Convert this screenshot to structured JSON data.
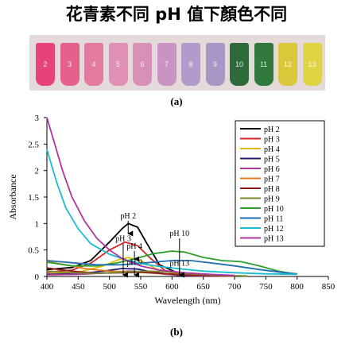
{
  "figure_title": "花青素不同 pH 值下顏色不同",
  "photo": {
    "caption": "(a)",
    "tubes": [
      {
        "label": "2",
        "color": "#e8427a"
      },
      {
        "label": "3",
        "color": "#e6608e"
      },
      {
        "label": "4",
        "color": "#e47aa0"
      },
      {
        "label": "5",
        "color": "#df90b4"
      },
      {
        "label": "6",
        "color": "#d88fb8"
      },
      {
        "label": "7",
        "color": "#c994c4"
      },
      {
        "label": "8",
        "color": "#b39acb"
      },
      {
        "label": "9",
        "color": "#a697c4"
      },
      {
        "label": "10",
        "color": "#2f6b3a"
      },
      {
        "label": "11",
        "color": "#2f7a3c"
      },
      {
        "label": "12",
        "color": "#d9c93a"
      },
      {
        "label": "13",
        "color": "#e0d444"
      }
    ]
  },
  "chart_caption": "(b)",
  "chart_data": {
    "type": "line",
    "xlabel": "Wavelength (nm)",
    "ylabel": "Absorbance",
    "xlim": [
      400,
      850
    ],
    "ylim": [
      0,
      3
    ],
    "xticks": [
      400,
      450,
      500,
      550,
      600,
      650,
      700,
      750,
      800,
      850
    ],
    "yticks": [
      0,
      0.5,
      1,
      1.5,
      2,
      2.5,
      3
    ],
    "ytick_labels": [
      "0",
      "0.5",
      "1",
      "1.5",
      "2",
      "2.5",
      "3"
    ],
    "grid": false,
    "legend_position": "top-right",
    "series": [
      {
        "name": "pH 2",
        "color": "#000000",
        "points": [
          [
            400,
            0.13
          ],
          [
            440,
            0.17
          ],
          [
            470,
            0.3
          ],
          [
            500,
            0.65
          ],
          [
            520,
            0.9
          ],
          [
            530,
            1.0
          ],
          [
            545,
            0.93
          ],
          [
            560,
            0.62
          ],
          [
            580,
            0.22
          ],
          [
            610,
            0.06
          ],
          [
            650,
            0.02
          ],
          [
            700,
            0.01
          ]
        ]
      },
      {
        "name": "pH 3",
        "color": "#d62728",
        "points": [
          [
            400,
            0.08
          ],
          [
            440,
            0.12
          ],
          [
            470,
            0.25
          ],
          [
            500,
            0.5
          ],
          [
            525,
            0.65
          ],
          [
            545,
            0.58
          ],
          [
            565,
            0.35
          ],
          [
            590,
            0.1
          ],
          [
            620,
            0.03
          ],
          [
            660,
            0.01
          ],
          [
            700,
            0.01
          ]
        ]
      },
      {
        "name": "pH 4",
        "color": "#e5b800",
        "points": [
          [
            400,
            0.05
          ],
          [
            450,
            0.08
          ],
          [
            490,
            0.2
          ],
          [
            515,
            0.32
          ],
          [
            530,
            0.36
          ],
          [
            550,
            0.3
          ],
          [
            575,
            0.14
          ],
          [
            610,
            0.04
          ],
          [
            660,
            0.01
          ],
          [
            700,
            0.01
          ]
        ]
      },
      {
        "name": "pH 5",
        "color": "#1f1f6e",
        "points": [
          [
            400,
            0.04
          ],
          [
            450,
            0.05
          ],
          [
            490,
            0.1
          ],
          [
            520,
            0.15
          ],
          [
            545,
            0.14
          ],
          [
            570,
            0.08
          ],
          [
            610,
            0.02
          ],
          [
            660,
            0.01
          ],
          [
            700,
            0.01
          ]
        ]
      },
      {
        "name": "pH 6",
        "color": "#b0339e",
        "points": [
          [
            400,
            0.03
          ],
          [
            450,
            0.04
          ],
          [
            500,
            0.07
          ],
          [
            530,
            0.1
          ],
          [
            555,
            0.09
          ],
          [
            590,
            0.04
          ],
          [
            640,
            0.01
          ],
          [
            700,
            0.01
          ]
        ]
      },
      {
        "name": "pH 7",
        "color": "#e07b1f",
        "points": [
          [
            400,
            0.28
          ],
          [
            430,
            0.22
          ],
          [
            460,
            0.15
          ],
          [
            500,
            0.1
          ],
          [
            530,
            0.09
          ],
          [
            560,
            0.07
          ],
          [
            600,
            0.04
          ],
          [
            650,
            0.02
          ],
          [
            700,
            0.01
          ]
        ]
      },
      {
        "name": "pH 8",
        "color": "#8b1a1a",
        "points": [
          [
            400,
            0.16
          ],
          [
            440,
            0.1
          ],
          [
            480,
            0.06
          ],
          [
            520,
            0.07
          ],
          [
            550,
            0.08
          ],
          [
            580,
            0.06
          ],
          [
            620,
            0.03
          ],
          [
            670,
            0.01
          ],
          [
            700,
            0.01
          ]
        ]
      },
      {
        "name": "pH 9",
        "color": "#7a8a2f",
        "points": [
          [
            400,
            0.1
          ],
          [
            440,
            0.07
          ],
          [
            480,
            0.06
          ],
          [
            520,
            0.08
          ],
          [
            560,
            0.1
          ],
          [
            590,
            0.09
          ],
          [
            630,
            0.05
          ],
          [
            680,
            0.02
          ],
          [
            720,
            0.01
          ]
        ]
      },
      {
        "name": "pH 10",
        "color": "#2ca02c",
        "points": [
          [
            400,
            0.27
          ],
          [
            440,
            0.2
          ],
          [
            480,
            0.2
          ],
          [
            510,
            0.25
          ],
          [
            540,
            0.33
          ],
          [
            570,
            0.43
          ],
          [
            600,
            0.48
          ],
          [
            620,
            0.46
          ],
          [
            650,
            0.36
          ],
          [
            680,
            0.3
          ],
          [
            710,
            0.28
          ],
          [
            740,
            0.2
          ],
          [
            770,
            0.1
          ],
          [
            800,
            0.04
          ]
        ]
      },
      {
        "name": "pH 11",
        "color": "#1f6fb4",
        "points": [
          [
            400,
            0.3
          ],
          [
            440,
            0.26
          ],
          [
            480,
            0.22
          ],
          [
            520,
            0.22
          ],
          [
            560,
            0.26
          ],
          [
            600,
            0.3
          ],
          [
            630,
            0.3
          ],
          [
            660,
            0.26
          ],
          [
            700,
            0.2
          ],
          [
            740,
            0.13
          ],
          [
            780,
            0.07
          ],
          [
            800,
            0.05
          ]
        ]
      },
      {
        "name": "pH 12",
        "color": "#17becf",
        "points": [
          [
            400,
            2.4
          ],
          [
            415,
            1.8
          ],
          [
            430,
            1.3
          ],
          [
            450,
            0.9
          ],
          [
            470,
            0.62
          ],
          [
            500,
            0.42
          ],
          [
            530,
            0.3
          ],
          [
            560,
            0.22
          ],
          [
            600,
            0.16
          ],
          [
            650,
            0.1
          ],
          [
            700,
            0.07
          ],
          [
            750,
            0.05
          ],
          [
            800,
            0.04
          ]
        ]
      },
      {
        "name": "pH 13",
        "color": "#b0339e",
        "points": [
          [
            400,
            3.0
          ],
          [
            410,
            2.6
          ],
          [
            425,
            2.0
          ],
          [
            440,
            1.5
          ],
          [
            460,
            1.05
          ],
          [
            480,
            0.72
          ],
          [
            500,
            0.5
          ],
          [
            520,
            0.34
          ],
          [
            550,
            0.2
          ],
          [
            580,
            0.12
          ],
          [
            620,
            0.07
          ],
          [
            660,
            0.04
          ],
          [
            700,
            0.02
          ]
        ]
      }
    ],
    "annotations": [
      {
        "text": "pH 2",
        "x": 530,
        "y_text": 1.05,
        "arrow_to": 0.78
      },
      {
        "text": "pH 3",
        "x": 522,
        "y_text": 0.62,
        "arrow_to": 0.0
      },
      {
        "text": "pH 4",
        "x": 540,
        "y_text": 0.48,
        "arrow_to": 0.3
      },
      {
        "text": "pH 9",
        "x": 540,
        "y_text": 0.17,
        "arrow_to": 0.0
      },
      {
        "text": "pH 10",
        "x": 612,
        "y_text": 0.72,
        "arrow_to": 0.0
      },
      {
        "text": "pH 13",
        "x": 612,
        "y_text": 0.16,
        "arrow_to": 0.0
      }
    ]
  }
}
